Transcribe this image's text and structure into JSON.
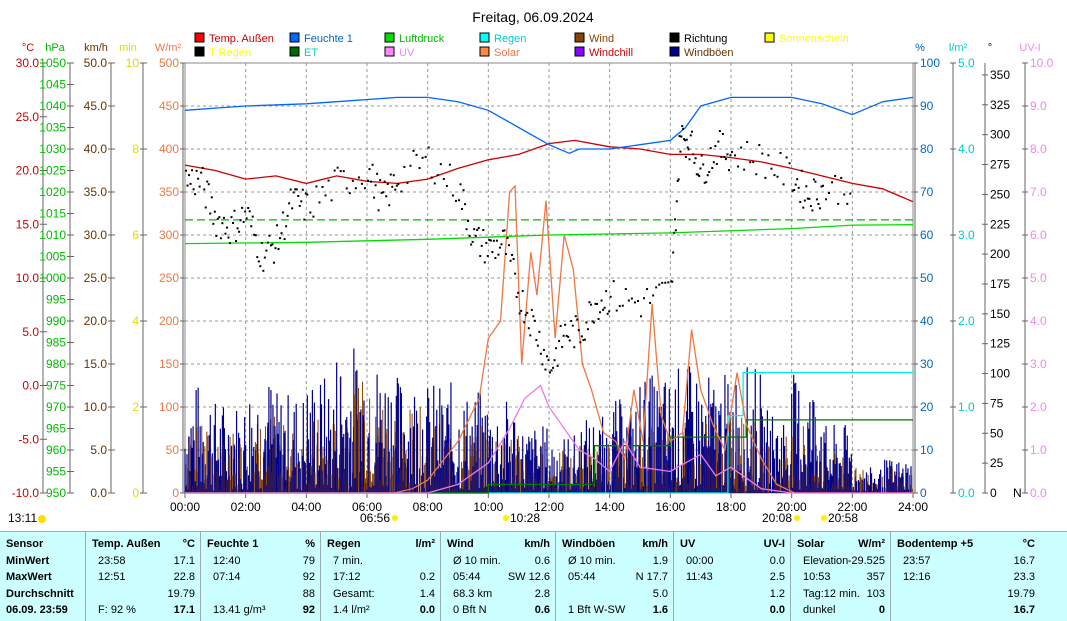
{
  "title": "Freitag, 06.09.2024",
  "legend": [
    {
      "label": "Temp. Außen",
      "color": "#ff0000",
      "text": "#cc0000"
    },
    {
      "label": "T Regen",
      "color": "#000000",
      "text": "#ffff00"
    },
    {
      "label": "Feuchte 1",
      "color": "#0066ff",
      "text": "#0066cc"
    },
    {
      "label": "ET",
      "color": "#006600",
      "text": "#00cccc"
    },
    {
      "label": "Luftdruck",
      "color": "#00dd00",
      "text": "#00bb00"
    },
    {
      "label": "UV",
      "color": "#ff88ff",
      "text": "#ee88ee"
    },
    {
      "label": "Regen",
      "color": "#00ffff",
      "text": "#00cccc"
    },
    {
      "label": "Solar",
      "color": "#ff8844",
      "text": "#ee7744"
    },
    {
      "label": "Wind",
      "color": "#884400",
      "text": "#884400"
    },
    {
      "label": "Windchill",
      "color": "#8800ff",
      "text": "#cc0000"
    },
    {
      "label": "Richtung",
      "color": "#000000",
      "text": "#000000"
    },
    {
      "label": "Windböen",
      "color": "#000088",
      "text": "#663300"
    },
    {
      "label": "Sonnenschein",
      "color": "#ffff00",
      "text": "#ffff00"
    }
  ],
  "chart_data": {
    "type": "line",
    "x_range": [
      "00:00",
      "24:00"
    ],
    "x_ticks": [
      "00:00",
      "02:00",
      "04:00",
      "06:00",
      "08:00",
      "10:00",
      "12:00",
      "14:00",
      "16:00",
      "18:00",
      "20:00",
      "22:00",
      "24:00"
    ],
    "axes": {
      "left": [
        {
          "unit": "°C",
          "min": -10,
          "max": 30,
          "step": 5,
          "dec": 1,
          "color": "#cc0000"
        },
        {
          "unit": "hPa",
          "min": 950,
          "max": 1050,
          "step": 5,
          "dec": 0,
          "color": "#00bb00"
        },
        {
          "unit": "km/h",
          "min": 0,
          "max": 50,
          "step": 5,
          "dec": 1,
          "color": "#663300"
        },
        {
          "unit": "min",
          "min": 0,
          "max": 10,
          "step": 2,
          "dec": 0,
          "color": "#dddd00"
        },
        {
          "unit": "W/m²",
          "min": 0,
          "max": 500,
          "step": 50,
          "dec": 0,
          "color": "#ee7744"
        }
      ],
      "right": [
        {
          "unit": "%",
          "min": 0,
          "max": 100,
          "step": 10,
          "dec": 0,
          "color": "#0066cc"
        },
        {
          "unit": "l/m²",
          "min": 0,
          "max": 5,
          "step": 1,
          "dec": 1,
          "color": "#00cccc"
        },
        {
          "unit": "°",
          "min": 0,
          "max": 360,
          "step": 25,
          "dec": 0,
          "color": "#000000",
          "top": 350
        },
        {
          "unit": "UV-I",
          "min": 0,
          "max": 10,
          "step": 1,
          "dec": 1,
          "color": "#ee88ee"
        }
      ]
    },
    "series": [
      {
        "name": "Temp. Außen",
        "axis": "°C",
        "color": "#cc0000",
        "points": [
          [
            0,
            20.5
          ],
          [
            1,
            20
          ],
          [
            2,
            19.2
          ],
          [
            3,
            19.5
          ],
          [
            4,
            18.8
          ],
          [
            5,
            19.5
          ],
          [
            6,
            19
          ],
          [
            7,
            18.8
          ],
          [
            8,
            19.2
          ],
          [
            9,
            20.2
          ],
          [
            10,
            21
          ],
          [
            11,
            21.5
          ],
          [
            12,
            22.5
          ],
          [
            12.85,
            22.8
          ],
          [
            14,
            22.2
          ],
          [
            15,
            22
          ],
          [
            16,
            21.5
          ],
          [
            17,
            21.5
          ],
          [
            18,
            21.2
          ],
          [
            19,
            20.8
          ],
          [
            20,
            20.2
          ],
          [
            21,
            19.5
          ],
          [
            22,
            18.8
          ],
          [
            23,
            18.3
          ],
          [
            24,
            17.1
          ]
        ]
      },
      {
        "name": "Feuchte 1",
        "axis": "%",
        "color": "#0066ff",
        "step": true,
        "points": [
          [
            0,
            89
          ],
          [
            1,
            89.5
          ],
          [
            2,
            90
          ],
          [
            4,
            90.5
          ],
          [
            5,
            91
          ],
          [
            7,
            92
          ],
          [
            8,
            92
          ],
          [
            9,
            91
          ],
          [
            10,
            89
          ],
          [
            11,
            85
          ],
          [
            12,
            81
          ],
          [
            12.67,
            79
          ],
          [
            13,
            80
          ],
          [
            14,
            80
          ],
          [
            15,
            81
          ],
          [
            16,
            82
          ],
          [
            16.5,
            85
          ],
          [
            17,
            90
          ],
          [
            18,
            92
          ],
          [
            20,
            92
          ],
          [
            21,
            90.5
          ],
          [
            22,
            88
          ],
          [
            23,
            91
          ],
          [
            24,
            92
          ]
        ]
      },
      {
        "name": "Luftdruck",
        "axis": "hPa",
        "color": "#00dd00",
        "points": [
          [
            0,
            1008
          ],
          [
            4,
            1008.3
          ],
          [
            8,
            1009
          ],
          [
            12,
            1010
          ],
          [
            16,
            1010.5
          ],
          [
            20,
            1011.5
          ],
          [
            22,
            1012.3
          ],
          [
            24,
            1012.4
          ]
        ]
      },
      {
        "name": "Luftdruck-ref",
        "axis": "hPa",
        "color": "#00bb00",
        "dash": true,
        "points": [
          [
            0,
            1013.5
          ],
          [
            24,
            1013.5
          ]
        ]
      },
      {
        "name": "Regen",
        "axis": "l/m²",
        "color": "#00eeee",
        "step": true,
        "points": [
          [
            0,
            0
          ],
          [
            17.9,
            0
          ],
          [
            17.9,
            0.9
          ],
          [
            18.4,
            0.9
          ],
          [
            18.4,
            1.4
          ],
          [
            24,
            1.4
          ]
        ]
      },
      {
        "name": "ET",
        "axis": "l/m²",
        "color": "#007700",
        "step": true,
        "points": [
          [
            0,
            0
          ],
          [
            10,
            0
          ],
          [
            10,
            0.1
          ],
          [
            13.5,
            0.1
          ],
          [
            13.5,
            0.55
          ],
          [
            16,
            0.55
          ],
          [
            16,
            0.65
          ],
          [
            18.5,
            0.65
          ],
          [
            18.5,
            0.85
          ],
          [
            24,
            0.85
          ]
        ]
      },
      {
        "name": "Solar",
        "axis": "W/m²",
        "color": "#ee7744",
        "points": [
          [
            0,
            0
          ],
          [
            6.9,
            0
          ],
          [
            7.5,
            5
          ],
          [
            8,
            15
          ],
          [
            9,
            60
          ],
          [
            9.7,
            110
          ],
          [
            10,
            180
          ],
          [
            10.4,
            200
          ],
          [
            10.7,
            350
          ],
          [
            10.88,
            357
          ],
          [
            11.1,
            150
          ],
          [
            11.4,
            280
          ],
          [
            11.6,
            230
          ],
          [
            11.9,
            340
          ],
          [
            12.2,
            180
          ],
          [
            12.5,
            300
          ],
          [
            12.8,
            260
          ],
          [
            13.1,
            150
          ],
          [
            13.4,
            120
          ],
          [
            13.8,
            70
          ],
          [
            14.2,
            60
          ],
          [
            14.5,
            40
          ],
          [
            14.8,
            120
          ],
          [
            15.1,
            60
          ],
          [
            15.4,
            220
          ],
          [
            15.7,
            90
          ],
          [
            16,
            60
          ],
          [
            16.4,
            70
          ],
          [
            16.7,
            190
          ],
          [
            17,
            120
          ],
          [
            17.4,
            80
          ],
          [
            17.8,
            50
          ],
          [
            18.2,
            140
          ],
          [
            18.5,
            80
          ],
          [
            19,
            40
          ],
          [
            19.5,
            10
          ],
          [
            20.1,
            0
          ],
          [
            24,
            0
          ]
        ]
      },
      {
        "name": "UV",
        "axis": "UV-I",
        "color": "#ee77ee",
        "points": [
          [
            0,
            0
          ],
          [
            8,
            0
          ],
          [
            9,
            0.2
          ],
          [
            10,
            0.7
          ],
          [
            10.7,
            1.5
          ],
          [
            11.2,
            2.2
          ],
          [
            11.72,
            2.5
          ],
          [
            12,
            2.0
          ],
          [
            12.5,
            1.5
          ],
          [
            13,
            1.0
          ],
          [
            13.5,
            0.8
          ],
          [
            14,
            0.5
          ],
          [
            14.5,
            1.2
          ],
          [
            15,
            0.6
          ],
          [
            16,
            0.5
          ],
          [
            17,
            0.9
          ],
          [
            17.5,
            0.4
          ],
          [
            18,
            0.6
          ],
          [
            19,
            0.1
          ],
          [
            20,
            0
          ],
          [
            24,
            0
          ]
        ]
      }
    ],
    "direction": {
      "axis": "°",
      "color": "#000000",
      "points": [
        [
          0,
          263
        ],
        [
          0.5,
          262
        ],
        [
          1,
          230
        ],
        [
          1.5,
          222
        ],
        [
          2,
          235
        ],
        [
          2.5,
          200
        ],
        [
          3,
          210
        ],
        [
          3.5,
          245
        ],
        [
          4,
          240
        ],
        [
          5,
          260
        ],
        [
          6,
          270
        ],
        [
          6.5,
          245
        ],
        [
          7,
          265
        ],
        [
          8,
          280
        ],
        [
          9,
          255
        ],
        [
          9.5,
          213
        ],
        [
          10,
          205
        ],
        [
          10.5,
          210
        ],
        [
          11,
          165
        ],
        [
          11.5,
          140
        ],
        [
          12,
          105
        ],
        [
          12.5,
          135
        ],
        [
          13,
          135
        ],
        [
          13.5,
          160
        ],
        [
          14,
          165
        ],
        [
          15,
          160
        ],
        [
          16,
          170
        ],
        [
          16.3,
          300
        ],
        [
          16.6,
          295
        ],
        [
          17,
          270
        ],
        [
          17.5,
          290
        ],
        [
          18,
          285
        ],
        [
          19,
          280
        ],
        [
          20,
          265
        ],
        [
          20.5,
          250
        ],
        [
          21,
          255
        ],
        [
          22,
          258
        ]
      ]
    },
    "wind_hourly_max": [
      8,
      7,
      9,
      8,
      9,
      14,
      12,
      10,
      9,
      8,
      7,
      6,
      5,
      6,
      7,
      9,
      9,
      9,
      10,
      7,
      9,
      5,
      3,
      3
    ],
    "gust_hourly_max": [
      13,
      11,
      14,
      12,
      14,
      17.7,
      16,
      14,
      13,
      12,
      11,
      8,
      7,
      9,
      11,
      14,
      15,
      14,
      15,
      10,
      14,
      8,
      3,
      4
    ],
    "markers": [
      {
        "time": "13:11",
        "kind": "sun"
      },
      {
        "time": "06:56",
        "kind": "sunrise"
      },
      {
        "time": "10:28",
        "kind": "rain"
      },
      {
        "time": "20:08",
        "kind": "sunset"
      },
      {
        "time": "20:58",
        "kind": "rain"
      }
    ]
  },
  "table": {
    "columns": [
      {
        "head": [
          "Sensor",
          ""
        ],
        "rows": [
          [
            "MinWert",
            ""
          ],
          [
            "MaxWert",
            ""
          ],
          [
            "Durchschnitt",
            ""
          ],
          [
            "06.09. 23:59",
            ""
          ]
        ],
        "boldLabels": true
      },
      {
        "head": [
          "Temp. Außen",
          "°C"
        ],
        "rows": [
          [
            "23:58",
            "17.1"
          ],
          [
            "12:51",
            "22.8"
          ],
          [
            "",
            "19.79"
          ],
          [
            "F: 92 %",
            "17.1"
          ]
        ]
      },
      {
        "head": [
          "Feuchte 1",
          "%"
        ],
        "rows": [
          [
            "12:40",
            "79"
          ],
          [
            "07:14",
            "92"
          ],
          [
            "",
            "88"
          ],
          [
            "13.41 g/m³",
            "92"
          ]
        ]
      },
      {
        "head": [
          "Regen",
          "l/m²"
        ],
        "rows": [
          [
            "7 min.",
            ""
          ],
          [
            "17:12",
            "0.2"
          ],
          [
            "Gesamt:",
            "1.4"
          ],
          [
            "1.4 l/m²",
            "0.0"
          ]
        ]
      },
      {
        "head": [
          "Wind",
          "km/h"
        ],
        "rows": [
          [
            "Ø 10 min.",
            "0.6"
          ],
          [
            "05:44",
            "SW 12.6"
          ],
          [
            "68.3 km",
            "2.8"
          ],
          [
            "0 Bft N",
            "0.6"
          ]
        ]
      },
      {
        "head": [
          "Windböen",
          "km/h"
        ],
        "rows": [
          [
            "Ø 10 min.",
            "1.9"
          ],
          [
            "05:44",
            "N 17.7"
          ],
          [
            "",
            "5.0"
          ],
          [
            "1 Bft W-SW",
            "1.6"
          ]
        ]
      },
      {
        "head": [
          "UV",
          "UV-I"
        ],
        "rows": [
          [
            "00:00",
            "0.0"
          ],
          [
            "11:43",
            "2.5"
          ],
          [
            "",
            "1.2"
          ],
          [
            "",
            "0.0"
          ]
        ]
      },
      {
        "head": [
          "Solar",
          "W/m²"
        ],
        "rows": [
          [
            "Elevation",
            "-29.525"
          ],
          [
            "10:53",
            "357"
          ],
          [
            "Tag:12 min.",
            "103"
          ],
          [
            "dunkel",
            "0"
          ]
        ]
      },
      {
        "head": [
          "Bodentemp +5",
          "°C"
        ],
        "rows": [
          [
            "23:57",
            "16.7"
          ],
          [
            "12:16",
            "23.3"
          ],
          [
            "",
            "19.79"
          ],
          [
            "",
            "16.7"
          ]
        ]
      }
    ]
  }
}
